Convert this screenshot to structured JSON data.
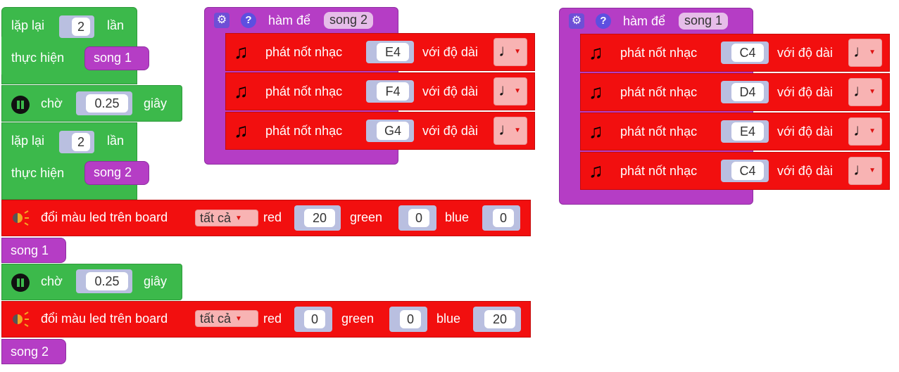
{
  "main": {
    "repeat1": {
      "label_a": "lặp lại",
      "count": "2",
      "label_b": "lần",
      "label_do": "thực hiện",
      "call": "song 1"
    },
    "wait1": {
      "label": "chờ",
      "value": "0.25",
      "unit": "giây"
    },
    "repeat2": {
      "label_a": "lặp lại",
      "count": "2",
      "label_b": "lần",
      "label_do": "thực hiện",
      "call": "song 2"
    },
    "led1": {
      "label": "đổi màu led trên board",
      "target": "tất cả",
      "red_label": "red",
      "red": "20",
      "green_label": "green",
      "green": "0",
      "blue_label": "blue",
      "blue": "0"
    },
    "call_song1": "song 1",
    "wait2": {
      "label": "chờ",
      "value": "0.25",
      "unit": "giây"
    },
    "led2": {
      "label": "đổi màu led trên board",
      "target": "tất cả",
      "red_label": "red",
      "red": "0",
      "green_label": "green",
      "green": "0",
      "blue_label": "blue",
      "blue": "20"
    },
    "call_song2": "song 2"
  },
  "func_song2": {
    "header_label": "hàm để",
    "name": "song 2",
    "notes": [
      {
        "label": "phát nốt nhạc",
        "note": "E4",
        "dur_label": "với độ dài"
      },
      {
        "label": "phát nốt nhạc",
        "note": "F4",
        "dur_label": "với độ dài"
      },
      {
        "label": "phát nốt nhạc",
        "note": "G4",
        "dur_label": "với độ dài"
      }
    ]
  },
  "func_song1": {
    "header_label": "hàm để",
    "name": "song 1",
    "notes": [
      {
        "label": "phát nốt nhạc",
        "note": "C4",
        "dur_label": "với độ dài"
      },
      {
        "label": "phát nốt nhạc",
        "note": "D4",
        "dur_label": "với độ dài"
      },
      {
        "label": "phát nốt nhạc",
        "note": "E4",
        "dur_label": "với độ dài"
      },
      {
        "label": "phát nốt nhạc",
        "note": "C4",
        "dur_label": "với độ dài"
      }
    ]
  },
  "symbols": {
    "quarter_note": "♩",
    "dropdown_arrow": "▼",
    "music_icon": "music-notes-icon"
  },
  "colors": {
    "green": "#3cb94b",
    "red": "#f20f0f",
    "purple": "#b53dc5"
  }
}
